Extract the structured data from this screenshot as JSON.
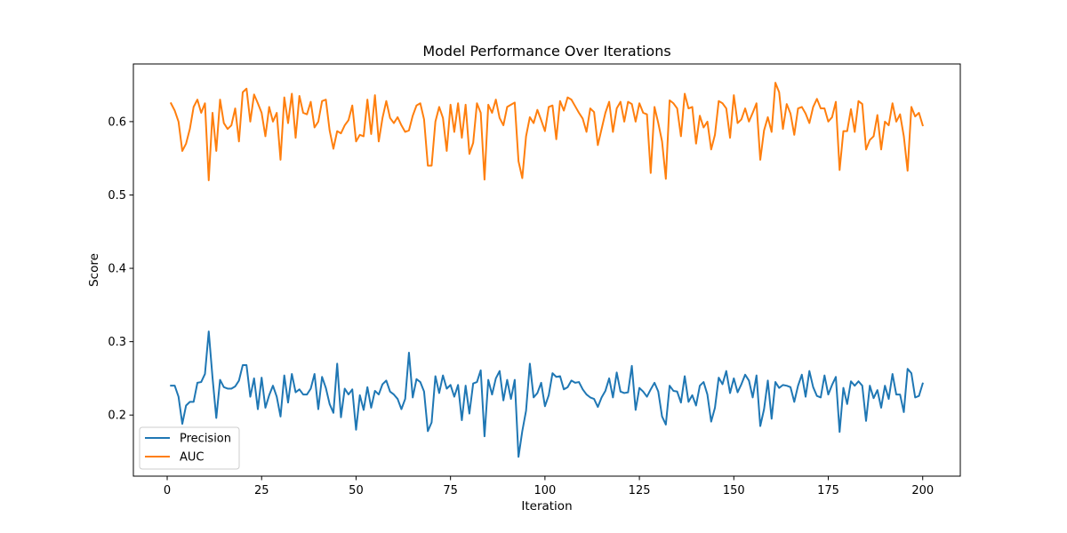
{
  "chart_data": {
    "type": "line",
    "title": "Model Performance Over Iterations",
    "xlabel": "Iteration",
    "ylabel": "Score",
    "xlim": [
      -8.95,
      209.95
    ],
    "ylim": [
      0.1167,
      0.6786
    ],
    "xticks": [
      0,
      25,
      50,
      75,
      100,
      125,
      150,
      175,
      200
    ],
    "yticks": [
      0.2,
      0.3,
      0.4,
      0.5,
      0.6
    ],
    "ytick_labels": [
      "0.2",
      "0.3",
      "0.4",
      "0.5",
      "0.6"
    ],
    "grid": false,
    "legend": {
      "position": "bottom-left",
      "entries": [
        "Precision",
        "AUC"
      ]
    },
    "x": [
      1,
      2,
      3,
      4,
      5,
      6,
      7,
      8,
      9,
      10,
      11,
      12,
      13,
      14,
      15,
      16,
      17,
      18,
      19,
      20,
      21,
      22,
      23,
      24,
      25,
      26,
      27,
      28,
      29,
      30,
      31,
      32,
      33,
      34,
      35,
      36,
      37,
      38,
      39,
      40,
      41,
      42,
      43,
      44,
      45,
      46,
      47,
      48,
      49,
      50,
      51,
      52,
      53,
      54,
      55,
      56,
      57,
      58,
      59,
      60,
      61,
      62,
      63,
      64,
      65,
      66,
      67,
      68,
      69,
      70,
      71,
      72,
      73,
      74,
      75,
      76,
      77,
      78,
      79,
      80,
      81,
      82,
      83,
      84,
      85,
      86,
      87,
      88,
      89,
      90,
      91,
      92,
      93,
      94,
      95,
      96,
      97,
      98,
      99,
      100,
      101,
      102,
      103,
      104,
      105,
      106,
      107,
      108,
      109,
      110,
      111,
      112,
      113,
      114,
      115,
      116,
      117,
      118,
      119,
      120,
      121,
      122,
      123,
      124,
      125,
      126,
      127,
      128,
      129,
      130,
      131,
      132,
      133,
      134,
      135,
      136,
      137,
      138,
      139,
      140,
      141,
      142,
      143,
      144,
      145,
      146,
      147,
      148,
      149,
      150,
      151,
      152,
      153,
      154,
      155,
      156,
      157,
      158,
      159,
      160,
      161,
      162,
      163,
      164,
      165,
      166,
      167,
      168,
      169,
      170,
      171,
      172,
      173,
      174,
      175,
      176,
      177,
      178,
      179,
      180,
      181,
      182,
      183,
      184,
      185,
      186,
      187,
      188,
      189,
      190,
      191,
      192,
      193,
      194,
      195,
      196,
      197,
      198,
      199,
      200
    ],
    "series": [
      {
        "name": "Precision",
        "color": "#1f77b4",
        "values": [
          0.24,
          0.24,
          0.225,
          0.188,
          0.213,
          0.218,
          0.218,
          0.244,
          0.245,
          0.256,
          0.314,
          0.251,
          0.196,
          0.248,
          0.238,
          0.236,
          0.236,
          0.239,
          0.247,
          0.268,
          0.268,
          0.225,
          0.25,
          0.208,
          0.251,
          0.21,
          0.227,
          0.24,
          0.225,
          0.198,
          0.254,
          0.217,
          0.256,
          0.231,
          0.235,
          0.228,
          0.228,
          0.236,
          0.256,
          0.208,
          0.252,
          0.237,
          0.215,
          0.203,
          0.27,
          0.197,
          0.236,
          0.228,
          0.235,
          0.18,
          0.227,
          0.207,
          0.238,
          0.21,
          0.233,
          0.228,
          0.242,
          0.247,
          0.232,
          0.228,
          0.222,
          0.208,
          0.222,
          0.285,
          0.224,
          0.249,
          0.245,
          0.232,
          0.178,
          0.19,
          0.253,
          0.23,
          0.254,
          0.236,
          0.241,
          0.225,
          0.241,
          0.193,
          0.24,
          0.202,
          0.243,
          0.245,
          0.261,
          0.171,
          0.248,
          0.228,
          0.25,
          0.26,
          0.22,
          0.248,
          0.222,
          0.248,
          0.143,
          0.178,
          0.206,
          0.27,
          0.224,
          0.23,
          0.244,
          0.212,
          0.227,
          0.257,
          0.252,
          0.253,
          0.235,
          0.238,
          0.247,
          0.244,
          0.245,
          0.235,
          0.228,
          0.224,
          0.222,
          0.211,
          0.224,
          0.233,
          0.25,
          0.224,
          0.258,
          0.232,
          0.23,
          0.231,
          0.267,
          0.207,
          0.237,
          0.232,
          0.225,
          0.235,
          0.244,
          0.232,
          0.198,
          0.187,
          0.24,
          0.233,
          0.232,
          0.217,
          0.253,
          0.218,
          0.227,
          0.213,
          0.24,
          0.245,
          0.228,
          0.191,
          0.21,
          0.251,
          0.242,
          0.26,
          0.23,
          0.25,
          0.231,
          0.242,
          0.255,
          0.247,
          0.224,
          0.254,
          0.185,
          0.208,
          0.247,
          0.195,
          0.245,
          0.237,
          0.241,
          0.24,
          0.238,
          0.218,
          0.24,
          0.255,
          0.225,
          0.26,
          0.238,
          0.226,
          0.224,
          0.254,
          0.228,
          0.241,
          0.252,
          0.177,
          0.237,
          0.215,
          0.246,
          0.24,
          0.246,
          0.24,
          0.192,
          0.24,
          0.223,
          0.234,
          0.21,
          0.24,
          0.222,
          0.256,
          0.228,
          0.228,
          0.204,
          0.263,
          0.257,
          0.224,
          0.226,
          0.243
        ]
      },
      {
        "name": "AUC",
        "color": "#ff7f0e",
        "values": [
          0.625,
          0.615,
          0.6,
          0.56,
          0.57,
          0.59,
          0.62,
          0.63,
          0.612,
          0.625,
          0.52,
          0.612,
          0.56,
          0.63,
          0.598,
          0.59,
          0.595,
          0.618,
          0.573,
          0.64,
          0.645,
          0.6,
          0.637,
          0.625,
          0.612,
          0.58,
          0.62,
          0.6,
          0.612,
          0.548,
          0.633,
          0.598,
          0.638,
          0.578,
          0.635,
          0.612,
          0.61,
          0.627,
          0.592,
          0.6,
          0.628,
          0.63,
          0.588,
          0.563,
          0.587,
          0.584,
          0.595,
          0.602,
          0.622,
          0.573,
          0.582,
          0.58,
          0.63,
          0.583,
          0.636,
          0.573,
          0.605,
          0.628,
          0.605,
          0.598,
          0.606,
          0.595,
          0.586,
          0.588,
          0.608,
          0.622,
          0.625,
          0.603,
          0.54,
          0.54,
          0.6,
          0.62,
          0.605,
          0.56,
          0.623,
          0.586,
          0.625,
          0.578,
          0.623,
          0.556,
          0.571,
          0.625,
          0.612,
          0.521,
          0.623,
          0.612,
          0.63,
          0.605,
          0.595,
          0.62,
          0.623,
          0.626,
          0.546,
          0.523,
          0.58,
          0.606,
          0.598,
          0.616,
          0.602,
          0.587,
          0.62,
          0.622,
          0.576,
          0.628,
          0.615,
          0.633,
          0.63,
          0.621,
          0.612,
          0.604,
          0.586,
          0.618,
          0.613,
          0.568,
          0.59,
          0.612,
          0.627,
          0.586,
          0.618,
          0.627,
          0.6,
          0.627,
          0.624,
          0.6,
          0.625,
          0.612,
          0.61,
          0.53,
          0.62,
          0.598,
          0.573,
          0.522,
          0.629,
          0.625,
          0.618,
          0.58,
          0.638,
          0.618,
          0.62,
          0.57,
          0.608,
          0.592,
          0.6,
          0.562,
          0.582,
          0.628,
          0.625,
          0.618,
          0.578,
          0.636,
          0.598,
          0.603,
          0.618,
          0.6,
          0.612,
          0.625,
          0.548,
          0.588,
          0.606,
          0.586,
          0.653,
          0.64,
          0.59,
          0.624,
          0.611,
          0.582,
          0.618,
          0.62,
          0.611,
          0.598,
          0.62,
          0.631,
          0.618,
          0.618,
          0.6,
          0.606,
          0.627,
          0.534,
          0.587,
          0.587,
          0.617,
          0.586,
          0.628,
          0.624,
          0.562,
          0.575,
          0.58,
          0.609,
          0.562,
          0.6,
          0.595,
          0.625,
          0.6,
          0.61,
          0.58,
          0.533,
          0.62,
          0.607,
          0.612,
          0.595
        ]
      }
    ]
  }
}
